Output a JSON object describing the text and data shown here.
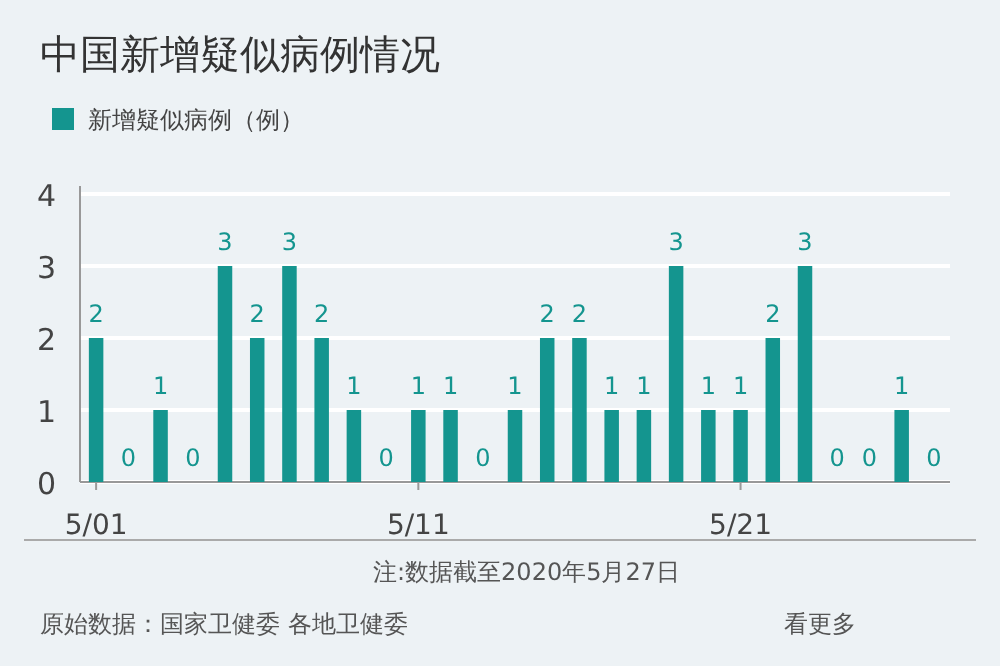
{
  "chart_data": {
    "type": "bar",
    "title": "中国新增疑似病例情况",
    "categories": [
      "5/01",
      null,
      null,
      null,
      null,
      null,
      null,
      null,
      null,
      null,
      "5/11",
      null,
      null,
      null,
      null,
      null,
      null,
      null,
      null,
      null,
      "5/21",
      null,
      null,
      null,
      null,
      null,
      null
    ],
    "series": [
      {
        "name": "新增疑似病例（例）",
        "color": "#14958f",
        "values": [
          2,
          0,
          1,
          0,
          3,
          2,
          3,
          2,
          1,
          0,
          1,
          1,
          0,
          1,
          2,
          2,
          1,
          1,
          3,
          1,
          1,
          2,
          3,
          0,
          0,
          1,
          0
        ]
      }
    ],
    "ylim": [
      0,
      4
    ],
    "yticks": [
      0,
      1,
      2,
      3,
      4
    ],
    "grid": "y",
    "legend": "top left",
    "data_labels": true,
    "annotations": [
      "注:数据截至2020年5月27日",
      "原始数据：国家卫健委 各地卫健委",
      "看更多"
    ]
  }
}
